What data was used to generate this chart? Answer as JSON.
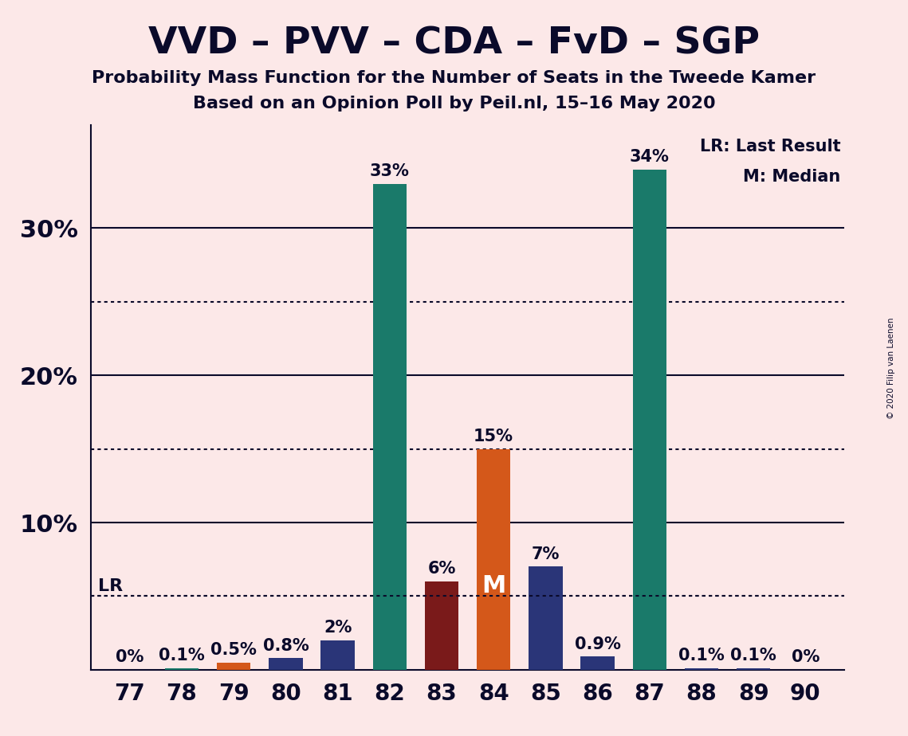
{
  "title": "VVD – PVV – CDA – FvD – SGP",
  "subtitle1": "Probability Mass Function for the Number of Seats in the Tweede Kamer",
  "subtitle2": "Based on an Opinion Poll by Peil.nl, 15–16 May 2020",
  "copyright": "© 2020 Filip van Laenen",
  "legend_lr": "LR: Last Result",
  "legend_m": "M: Median",
  "background_color": "#fce8e8",
  "categories": [
    77,
    78,
    79,
    80,
    81,
    82,
    83,
    84,
    85,
    86,
    87,
    88,
    89,
    90
  ],
  "values": [
    0.0,
    0.1,
    0.5,
    0.8,
    2.0,
    33.0,
    6.0,
    15.0,
    7.0,
    0.9,
    34.0,
    0.1,
    0.1,
    0.0
  ],
  "bar_colors": [
    "#1a7a6a",
    "#1a7a6a",
    "#d4581a",
    "#2a3578",
    "#2a3578",
    "#1a7a6a",
    "#7a1a1a",
    "#d4581a",
    "#2a3578",
    "#2a3578",
    "#1a7a6a",
    "#2a3578",
    "#2a3578",
    "#1a7a6a"
  ],
  "lr_value": 5.0,
  "median_seat": 84,
  "ylim_max": 37,
  "dotted_lines": [
    5,
    15,
    25
  ],
  "solid_lines": [
    10,
    20,
    30
  ],
  "title_fontsize": 34,
  "subtitle_fontsize": 16,
  "bar_label_fontsize": 15,
  "ytick_fontsize": 22,
  "xtick_fontsize": 20,
  "text_color": "#0a0a2a"
}
